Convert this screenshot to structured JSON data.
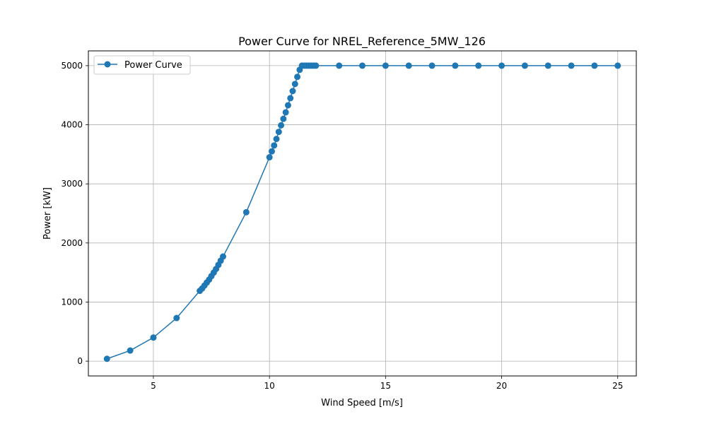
{
  "chart_data": {
    "type": "line",
    "title": "Power Curve for NREL_Reference_5MW_126",
    "xlabel": "Wind Speed [m/s]",
    "ylabel": "Power [kW]",
    "xlim": [
      2.2,
      25.8
    ],
    "ylim": [
      -250,
      5250
    ],
    "xticks": [
      5,
      10,
      15,
      20,
      25
    ],
    "yticks": [
      0,
      1000,
      2000,
      3000,
      4000,
      5000
    ],
    "grid": true,
    "legend_position": "top-left",
    "color": "#1f77b4",
    "series": [
      {
        "name": "Power Curve",
        "x": [
          3,
          4,
          5,
          6,
          7,
          7.1,
          7.2,
          7.3,
          7.4,
          7.5,
          7.6,
          7.7,
          7.8,
          7.9,
          8,
          9,
          10,
          10.1,
          10.2,
          10.3,
          10.4,
          10.5,
          10.6,
          10.7,
          10.8,
          10.9,
          11,
          11.1,
          11.2,
          11.3,
          11.4,
          11.5,
          11.6,
          11.7,
          11.8,
          11.9,
          12,
          13,
          14,
          15,
          16,
          17,
          18,
          19,
          20,
          21,
          22,
          23,
          24,
          25
        ],
        "y": [
          40,
          180,
          400,
          730,
          1190,
          1230,
          1280,
          1330,
          1380,
          1440,
          1500,
          1560,
          1630,
          1700,
          1770,
          2520,
          3450,
          3550,
          3650,
          3760,
          3880,
          3990,
          4100,
          4210,
          4330,
          4450,
          4570,
          4690,
          4810,
          4930,
          5000,
          5000,
          5000,
          5000,
          5000,
          5000,
          5000,
          5000,
          5000,
          5000,
          5000,
          5000,
          5000,
          5000,
          5000,
          5000,
          5000,
          5000,
          5000,
          5000
        ]
      }
    ]
  }
}
